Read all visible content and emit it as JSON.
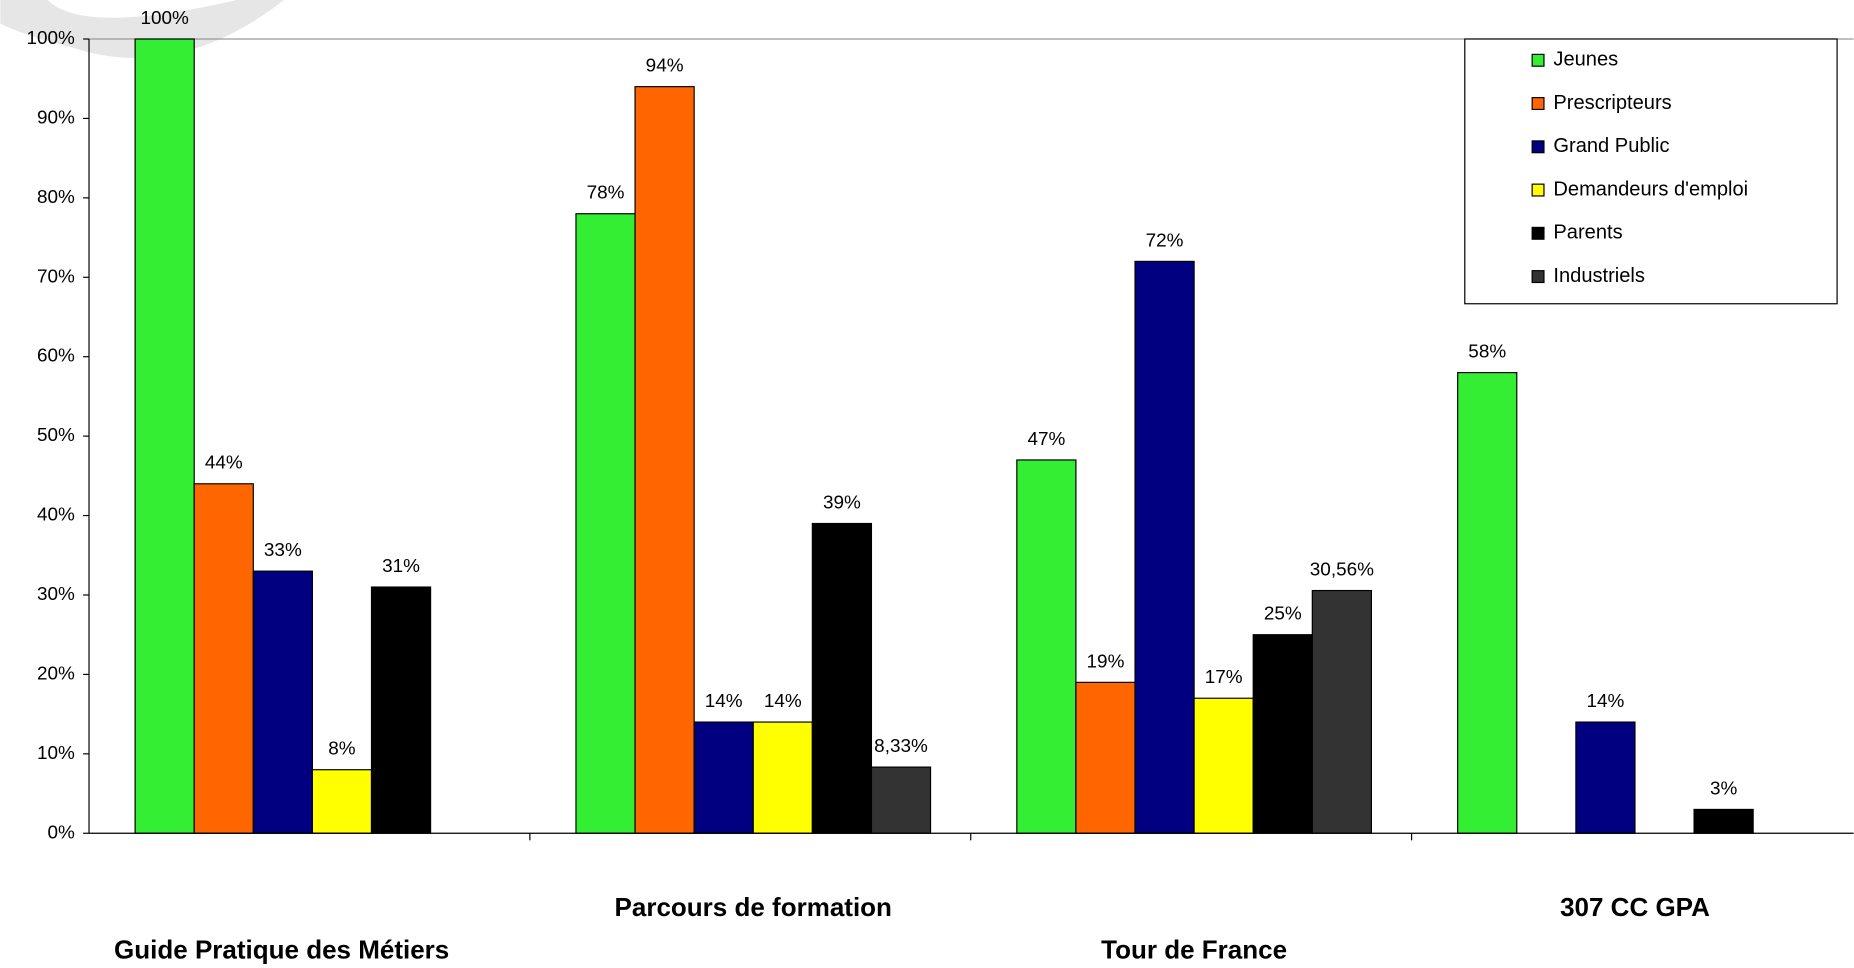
{
  "chart_data": {
    "type": "bar",
    "categories": [
      "Guide Pratique des Métiers",
      "Parcours de formation",
      "Tour de France",
      "307 CC GPA"
    ],
    "series": [
      {
        "name": "Jeunes",
        "color": "#33ee33",
        "values": [
          100,
          78,
          47,
          58
        ],
        "value_labels": [
          "100%",
          "78%",
          "47%",
          "58%"
        ]
      },
      {
        "name": "Prescripteurs",
        "color": "#ff6600",
        "values": [
          44,
          94,
          19,
          null
        ],
        "value_labels": [
          "44%",
          "94%",
          "19%",
          null
        ]
      },
      {
        "name": "Grand Public",
        "color": "#000080",
        "values": [
          33,
          14,
          72,
          14
        ],
        "value_labels": [
          "33%",
          "14%",
          "72%",
          "14%"
        ]
      },
      {
        "name": "Demandeurs d'emploi",
        "color": "#ffff00",
        "values": [
          8,
          14,
          17,
          null
        ],
        "value_labels": [
          "8%",
          "14%",
          "17%",
          null
        ]
      },
      {
        "name": "Parents",
        "color": "#000000",
        "values": [
          31,
          39,
          25,
          3
        ],
        "value_labels": [
          "31%",
          "39%",
          "25%",
          "3%"
        ]
      },
      {
        "name": "Industriels",
        "color": "#333333",
        "values": [
          null,
          8.33,
          30.56,
          null
        ],
        "value_labels": [
          null,
          "8,33%",
          "30,56%",
          null
        ]
      }
    ],
    "ylim": [
      0,
      100
    ],
    "yticks": [
      {
        "value": 0,
        "label": "0%"
      },
      {
        "value": 10,
        "label": "10%"
      },
      {
        "value": 20,
        "label": "20%"
      },
      {
        "value": 30,
        "label": "30%"
      },
      {
        "value": 40,
        "label": "40%"
      },
      {
        "value": 50,
        "label": "50%"
      },
      {
        "value": 60,
        "label": "60%"
      },
      {
        "value": 70,
        "label": "70%"
      },
      {
        "value": 80,
        "label": "80%"
      },
      {
        "value": 90,
        "label": "90%"
      },
      {
        "value": 100,
        "label": "100%"
      }
    ],
    "legend": "top-right"
  }
}
